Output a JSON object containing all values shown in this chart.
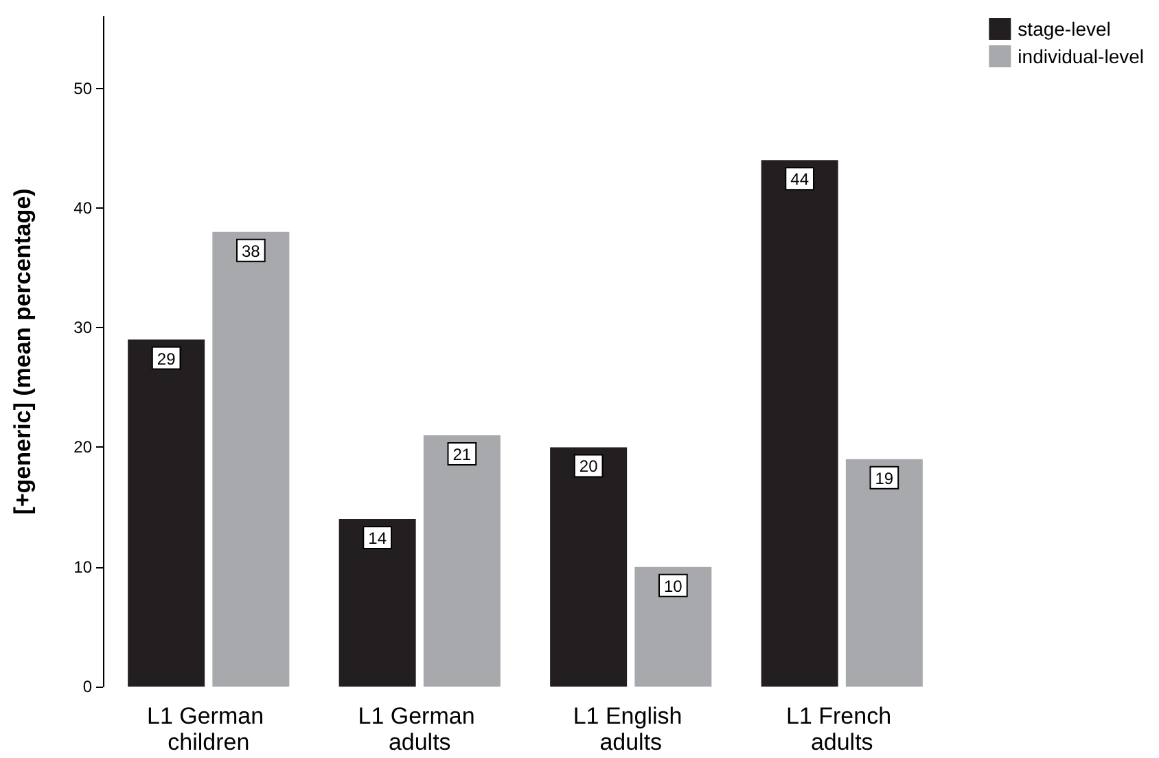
{
  "chart_data": {
    "type": "bar",
    "ylabel": "[+generic] (mean percentage)",
    "categories": [
      "L1 German children",
      "L1 German adults",
      "L1 English adults",
      "L1 French adults"
    ],
    "series": [
      {
        "name": "stage-level",
        "color": "#231f20",
        "values": [
          29,
          14,
          20,
          44
        ]
      },
      {
        "name": "individual-level",
        "color": "#a7a9ac",
        "values": [
          38,
          21,
          10,
          19
        ]
      }
    ],
    "ylim": [
      0,
      56
    ],
    "yticks": [
      0,
      10,
      20,
      30,
      40,
      50
    ],
    "grid": false,
    "legend": "top right",
    "data_labels": true
  }
}
